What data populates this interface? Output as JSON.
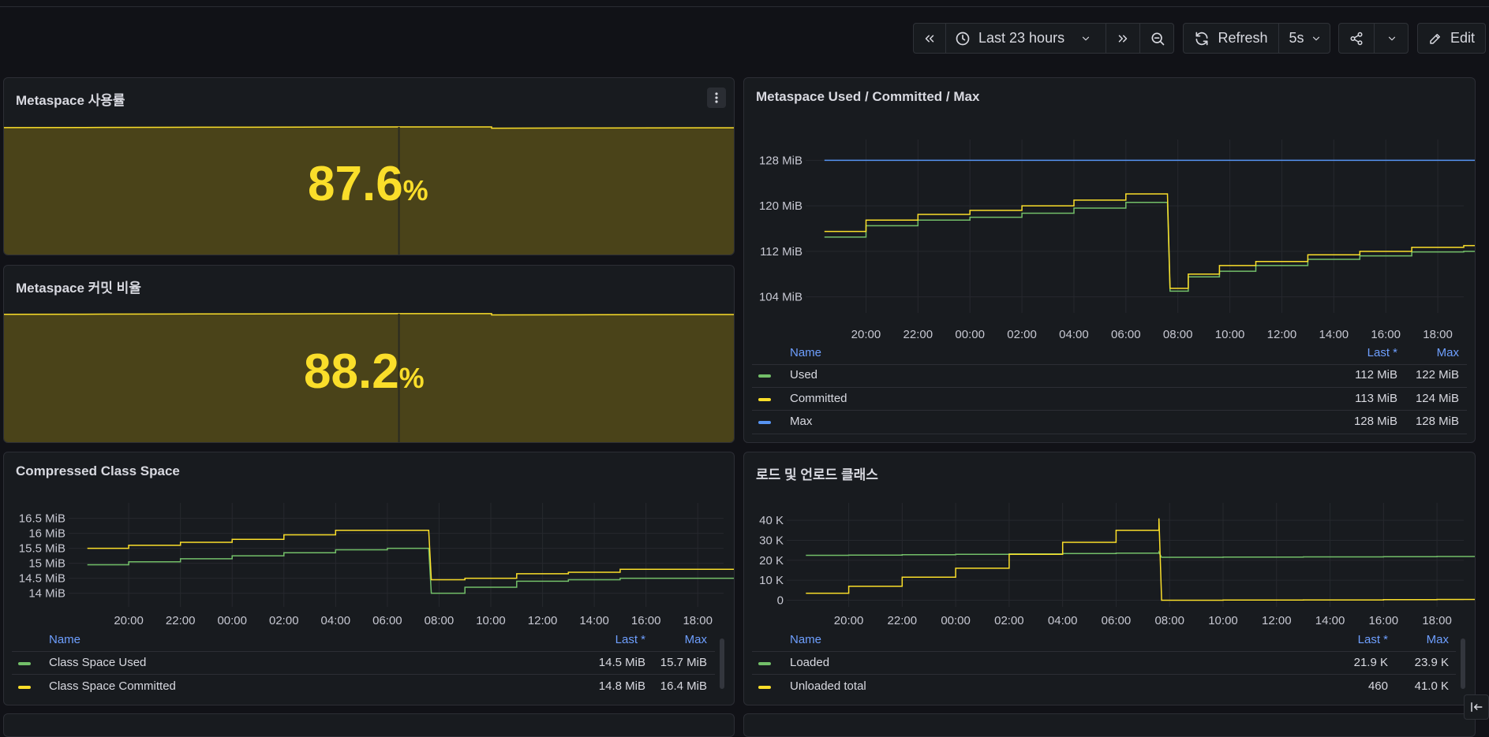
{
  "toolbar": {
    "time_range": "Last 23 hours",
    "refresh_label": "Refresh",
    "refresh_interval": "5s",
    "edit_label": "Edit"
  },
  "panels": {
    "meta_usage": {
      "title": "Metaspace 사용률",
      "value": "87.6",
      "unit": "%"
    },
    "meta_commit": {
      "title": "Metaspace 커밋 비율",
      "value": "88.2",
      "unit": "%"
    },
    "meta_umc": {
      "title": "Metaspace Used / Committed / Max",
      "legend_headers": {
        "name": "Name",
        "last": "Last *",
        "max": "Max"
      },
      "legend": [
        {
          "name": "Used",
          "last": "112 MiB",
          "max": "122 MiB",
          "color": "#73bf69"
        },
        {
          "name": "Committed",
          "last": "113 MiB",
          "max": "124 MiB",
          "color": "#fade2a"
        },
        {
          "name": "Max",
          "last": "128 MiB",
          "max": "128 MiB",
          "color": "#5794f2"
        }
      ]
    },
    "ccs": {
      "title": "Compressed Class Space",
      "legend_headers": {
        "name": "Name",
        "last": "Last *",
        "max": "Max"
      },
      "legend": [
        {
          "name": "Class Space Used",
          "last": "14.5 MiB",
          "max": "15.7 MiB",
          "color": "#73bf69"
        },
        {
          "name": "Class Space Committed",
          "last": "14.8 MiB",
          "max": "16.4 MiB",
          "color": "#fade2a"
        }
      ]
    },
    "classes": {
      "title": "로드 및 언로드 클래스",
      "legend_headers": {
        "name": "Name",
        "last": "Last *",
        "max": "Max"
      },
      "legend": [
        {
          "name": "Loaded",
          "last": "21.9 K",
          "max": "23.9 K",
          "color": "#73bf69"
        },
        {
          "name": "Unloaded total",
          "last": "460",
          "max": "41.0 K",
          "color": "#fade2a"
        }
      ]
    }
  },
  "chart_data": [
    {
      "type": "area",
      "x_ticks": [],
      "series": [
        {
          "name": "Metaspace 사용률",
          "values": [
            87.7,
            87.8,
            87.9,
            88.0,
            88.1,
            88.2,
            87.3,
            87.4,
            87.5,
            87.6
          ]
        }
      ],
      "ylim": [
        0,
        100
      ]
    },
    {
      "type": "area",
      "x_ticks": [],
      "series": [
        {
          "name": "Metaspace 커밋 비율",
          "values": [
            88.3,
            88.4,
            88.5,
            88.6,
            88.7,
            88.8,
            87.9,
            88.0,
            88.1,
            88.2
          ]
        }
      ],
      "ylim": [
        0,
        100
      ]
    },
    {
      "type": "line",
      "title": "Metaspace Used / Committed / Max",
      "x_ticks": [
        "20:00",
        "22:00",
        "00:00",
        "02:00",
        "04:00",
        "06:00",
        "08:00",
        "10:00",
        "12:00",
        "14:00",
        "16:00",
        "18:00"
      ],
      "y_ticks": [
        "104 MiB",
        "112 MiB",
        "120 MiB",
        "128 MiB"
      ],
      "ylim": [
        102,
        130
      ],
      "x": [
        -0.8,
        0,
        1,
        2,
        3,
        4,
        5,
        5.8,
        5.85,
        6.2,
        6.8,
        7.5,
        8.5,
        9.5,
        10.5,
        11.5,
        12.3
      ],
      "series": [
        {
          "name": "Used",
          "values": [
            114.5,
            116.5,
            117.5,
            118.0,
            118.7,
            119.6,
            120.6,
            120.7,
            105.0,
            107.5,
            108.5,
            109.5,
            110.6,
            111.2,
            111.9,
            112.0,
            112.0
          ]
        },
        {
          "name": "Committed",
          "values": [
            115.5,
            117.5,
            118.5,
            119.2,
            120.0,
            121.0,
            122.1,
            122.1,
            105.5,
            108.0,
            109.5,
            110.2,
            111.4,
            112.0,
            112.7,
            113.0,
            113.0
          ]
        },
        {
          "name": "Max",
          "values": [
            128,
            128,
            128,
            128,
            128,
            128,
            128,
            128,
            128,
            128,
            128,
            128,
            128,
            128,
            128,
            128,
            128
          ]
        }
      ]
    },
    {
      "type": "line",
      "title": "Compressed Class Space",
      "x_ticks": [
        "20:00",
        "22:00",
        "00:00",
        "02:00",
        "04:00",
        "06:00",
        "08:00",
        "10:00",
        "12:00",
        "14:00",
        "16:00",
        "18:00"
      ],
      "y_ticks": [
        "14 MiB",
        "14.5 MiB",
        "15 MiB",
        "15.5 MiB",
        "16 MiB",
        "16.5 MiB"
      ],
      "ylim": [
        13.7,
        16.7
      ],
      "x": [
        -0.8,
        0,
        1,
        2,
        3,
        4,
        5,
        5.8,
        5.85,
        6.5,
        7.5,
        8.5,
        9.5,
        11.0,
        12.3
      ],
      "series": [
        {
          "name": "Class Space Used",
          "values": [
            14.95,
            15.05,
            15.15,
            15.25,
            15.35,
            15.45,
            15.5,
            15.5,
            14.0,
            14.2,
            14.4,
            14.45,
            14.5,
            14.5,
            14.5
          ]
        },
        {
          "name": "Class Space Committed",
          "values": [
            15.5,
            15.6,
            15.7,
            15.8,
            15.95,
            16.1,
            16.1,
            16.1,
            14.45,
            14.5,
            14.65,
            14.7,
            14.8,
            14.8,
            14.8
          ]
        }
      ]
    },
    {
      "type": "line",
      "title": "로드 및 언로드 클래스",
      "x_ticks": [
        "20:00",
        "22:00",
        "00:00",
        "02:00",
        "04:00",
        "06:00",
        "08:00",
        "10:00",
        "12:00",
        "14:00",
        "16:00",
        "18:00"
      ],
      "y_ticks": [
        "0",
        "10 K",
        "20 K",
        "30 K",
        "40 K"
      ],
      "ylim": [
        -1000,
        44000
      ],
      "x": [
        -0.8,
        0,
        1,
        2,
        3,
        4,
        5,
        5.8,
        5.85,
        7,
        8.5,
        10,
        11,
        12.3
      ],
      "series": [
        {
          "name": "Loaded",
          "values": [
            22500,
            22600,
            22800,
            23000,
            23200,
            23400,
            23600,
            23900,
            21500,
            21600,
            21700,
            21800,
            21900,
            21900
          ]
        },
        {
          "name": "Unloaded total",
          "values": [
            3500,
            7000,
            11500,
            16000,
            23000,
            29000,
            35000,
            41000,
            0,
            50,
            150,
            300,
            400,
            460
          ]
        }
      ]
    }
  ]
}
